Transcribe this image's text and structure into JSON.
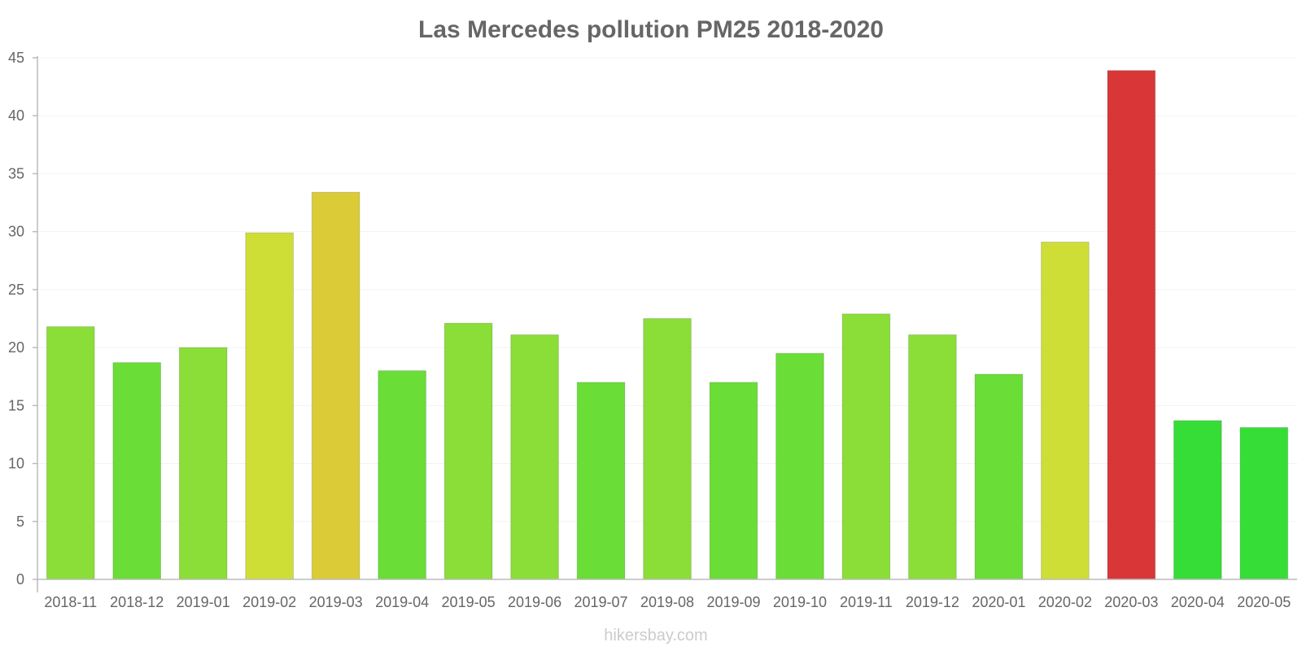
{
  "chart_data": {
    "type": "bar",
    "title": "Las Mercedes pollution PM25 2018-2020",
    "xlabel": "",
    "ylabel": "",
    "ylim": [
      0,
      45
    ],
    "yticks": [
      0,
      5,
      10,
      15,
      20,
      25,
      30,
      35,
      40,
      45
    ],
    "grid": true,
    "categories": [
      "2018-11",
      "2018-12",
      "2019-01",
      "2019-02",
      "2019-03",
      "2019-04",
      "2019-05",
      "2019-06",
      "2019-07",
      "2019-08",
      "2019-09",
      "2019-10",
      "2019-11",
      "2019-12",
      "2020-01",
      "2020-02",
      "2020-03",
      "2020-04",
      "2020-05"
    ],
    "values": [
      21.8,
      18.7,
      20.0,
      29.9,
      33.4,
      18.0,
      22.1,
      21.1,
      17.0,
      22.5,
      17.0,
      19.5,
      22.9,
      21.1,
      17.7,
      29.1,
      43.9,
      13.7,
      13.1
    ],
    "colors": [
      "#8ade37",
      "#6bdd37",
      "#8ade37",
      "#cfdd37",
      "#dbcb37",
      "#6bdd37",
      "#8ade37",
      "#8ade37",
      "#6bdd37",
      "#8ade37",
      "#6bdd37",
      "#6bdd37",
      "#8ade37",
      "#8ade37",
      "#6bdd37",
      "#cfdd37",
      "#d93737",
      "#37dd37",
      "#37dd37"
    ]
  },
  "credit": "hikersbay.com"
}
